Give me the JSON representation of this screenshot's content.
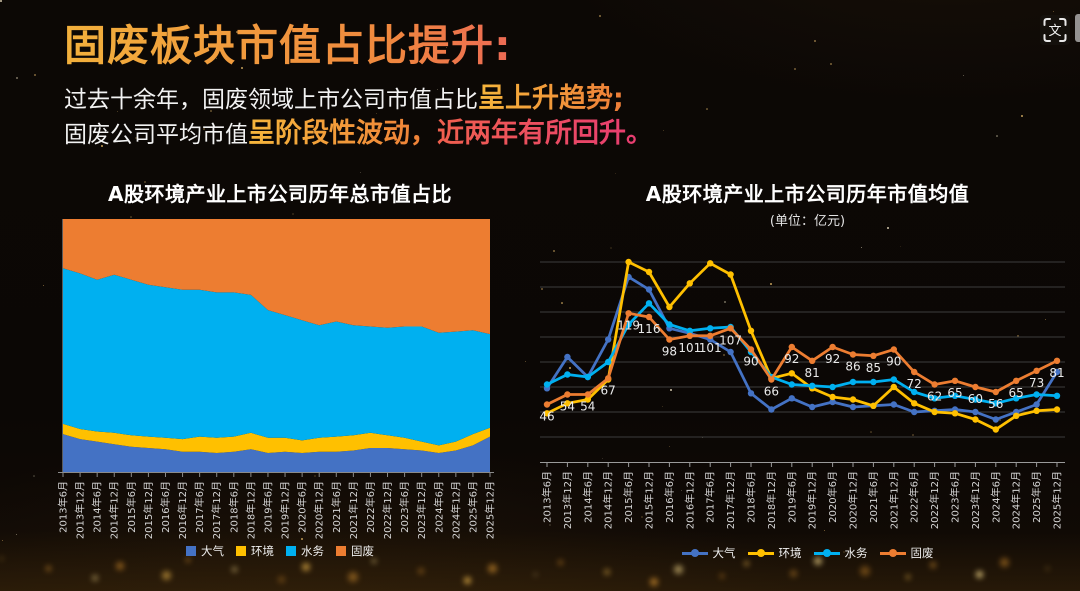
{
  "slide": {
    "heading": "固废板块市值占比提升:",
    "line1": {
      "normal": "过去十余年，固废领域上市公司市值占比",
      "highlight": "呈上升趋势;"
    },
    "line2": {
      "normal": "固废公司平均市值",
      "highlight_gold": "呈阶段性波动，",
      "highlight_pink": "近两年有所回升。"
    },
    "colors": {
      "heading_gradient": [
        "#F2B03C",
        "#E8476E"
      ],
      "highlight_gold": "#F2A93B",
      "highlight_orange": "#EE7D38",
      "highlight_pink": "#E8426E",
      "body_text": "#F2F2F2",
      "background": "#0C0805"
    }
  },
  "icons": {
    "translate_glyph": "文"
  },
  "chart_data": [
    {
      "type": "area",
      "stacked": "percent",
      "title": "A股环境产业上市公司历年总市值占比",
      "legend_position": "bottom",
      "grid": false,
      "ylim_percent": [
        0,
        100
      ],
      "categories": [
        "2013年6月",
        "2013年12月",
        "2014年6月",
        "2014年12月",
        "2015年6月",
        "2015年12月",
        "2016年6月",
        "2016年12月",
        "2017年6月",
        "2017年12月",
        "2018年6月",
        "2018年12月",
        "2019年6月",
        "2019年12月",
        "2020年6月",
        "2020年12月",
        "2021年6月",
        "2021年12月",
        "2022年6月",
        "2022年12月",
        "2023年6月",
        "2023年12月",
        "2024年6月",
        "2024年12月",
        "2025年6月",
        "2025年12月"
      ],
      "series": [
        {
          "name": "大气",
          "color": "#4472C4",
          "values": [
            15,
            13,
            12,
            11,
            10,
            9.5,
            9,
            8,
            8,
            7.5,
            8,
            9,
            7.5,
            8,
            7.5,
            8,
            8,
            8.5,
            9.5,
            9.5,
            9,
            8.5,
            7.5,
            8.5,
            10.5,
            14
          ]
        },
        {
          "name": "环境",
          "color": "#FFC000",
          "values": [
            4,
            4,
            4,
            4.5,
            4.5,
            4.5,
            4.5,
            5,
            6,
            6,
            6,
            6.5,
            6,
            5.5,
            5,
            5.5,
            6,
            6,
            6,
            5,
            4.5,
            3.5,
            3,
            3.5,
            4.5,
            3.5
          ]
        },
        {
          "name": "水务",
          "color": "#00B0F0",
          "values": [
            61.5,
            61.5,
            60,
            62.5,
            61.5,
            60,
            59.5,
            59,
            58,
            57.5,
            57,
            54.5,
            50.5,
            48.5,
            47.5,
            44.5,
            45.5,
            43.5,
            42,
            42.5,
            44,
            45.5,
            44.5,
            43.5,
            41,
            37
          ]
        },
        {
          "name": "固废",
          "color": "#ED7D31",
          "values": [
            19.5,
            21.5,
            24,
            22,
            24,
            26,
            27,
            28,
            28,
            29,
            29,
            30,
            36,
            38,
            40,
            42,
            40.5,
            42,
            42.5,
            43,
            42.5,
            42.5,
            45,
            44.5,
            44,
            45.5
          ]
        }
      ]
    },
    {
      "type": "line",
      "title": "A股环境产业上市公司历年市值均值",
      "subtitle": "(单位：亿元)",
      "legend_position": "bottom",
      "grid": true,
      "ylim": [
        0,
        160
      ],
      "grid_step": 20,
      "categories": [
        "2013年6月",
        "2013年12月",
        "2014年6月",
        "2014年12月",
        "2015年6月",
        "2015年12月",
        "2016年6月",
        "2016年12月",
        "2017年6月",
        "2017年12月",
        "2018年6月",
        "2018年12月",
        "2019年6月",
        "2019年12月",
        "2020年6月",
        "2020年12月",
        "2021年6月",
        "2021年12月",
        "2022年6月",
        "2022年12月",
        "2023年6月",
        "2023年12月",
        "2024年6月",
        "2024年12月",
        "2025年6月",
        "2025年12月"
      ],
      "series": [
        {
          "name": "大气",
          "color": "#4472C4",
          "values": [
            59,
            84,
            68,
            98,
            148,
            138,
            107,
            103,
            98,
            88,
            55,
            42,
            51,
            44,
            48,
            44,
            45,
            46,
            40,
            41,
            42,
            40,
            34,
            40,
            46,
            72
          ]
        },
        {
          "name": "环境",
          "color": "#FFC000",
          "values": [
            39,
            47,
            50,
            66,
            160,
            152,
            124,
            143,
            159,
            150,
            105,
            67,
            71,
            59,
            52,
            50,
            45,
            60,
            47,
            40,
            39,
            34,
            26,
            37,
            41,
            42
          ]
        },
        {
          "name": "水务",
          "color": "#00B0F0",
          "values": [
            62,
            70,
            68,
            80,
            110,
            127,
            110,
            105,
            107,
            108,
            88,
            68,
            62,
            61,
            60,
            64,
            64,
            66,
            56,
            51,
            53,
            50,
            47,
            51,
            54,
            53
          ]
        },
        {
          "name": "固废",
          "color": "#ED7D31",
          "values": [
            46,
            54,
            54,
            67,
            119,
            116,
            98,
            101,
            101,
            107,
            90,
            66,
            92,
            81,
            92,
            86,
            85,
            90,
            72,
            62,
            65,
            60,
            56,
            65,
            73,
            81
          ],
          "data_labels": true
        }
      ]
    }
  ]
}
